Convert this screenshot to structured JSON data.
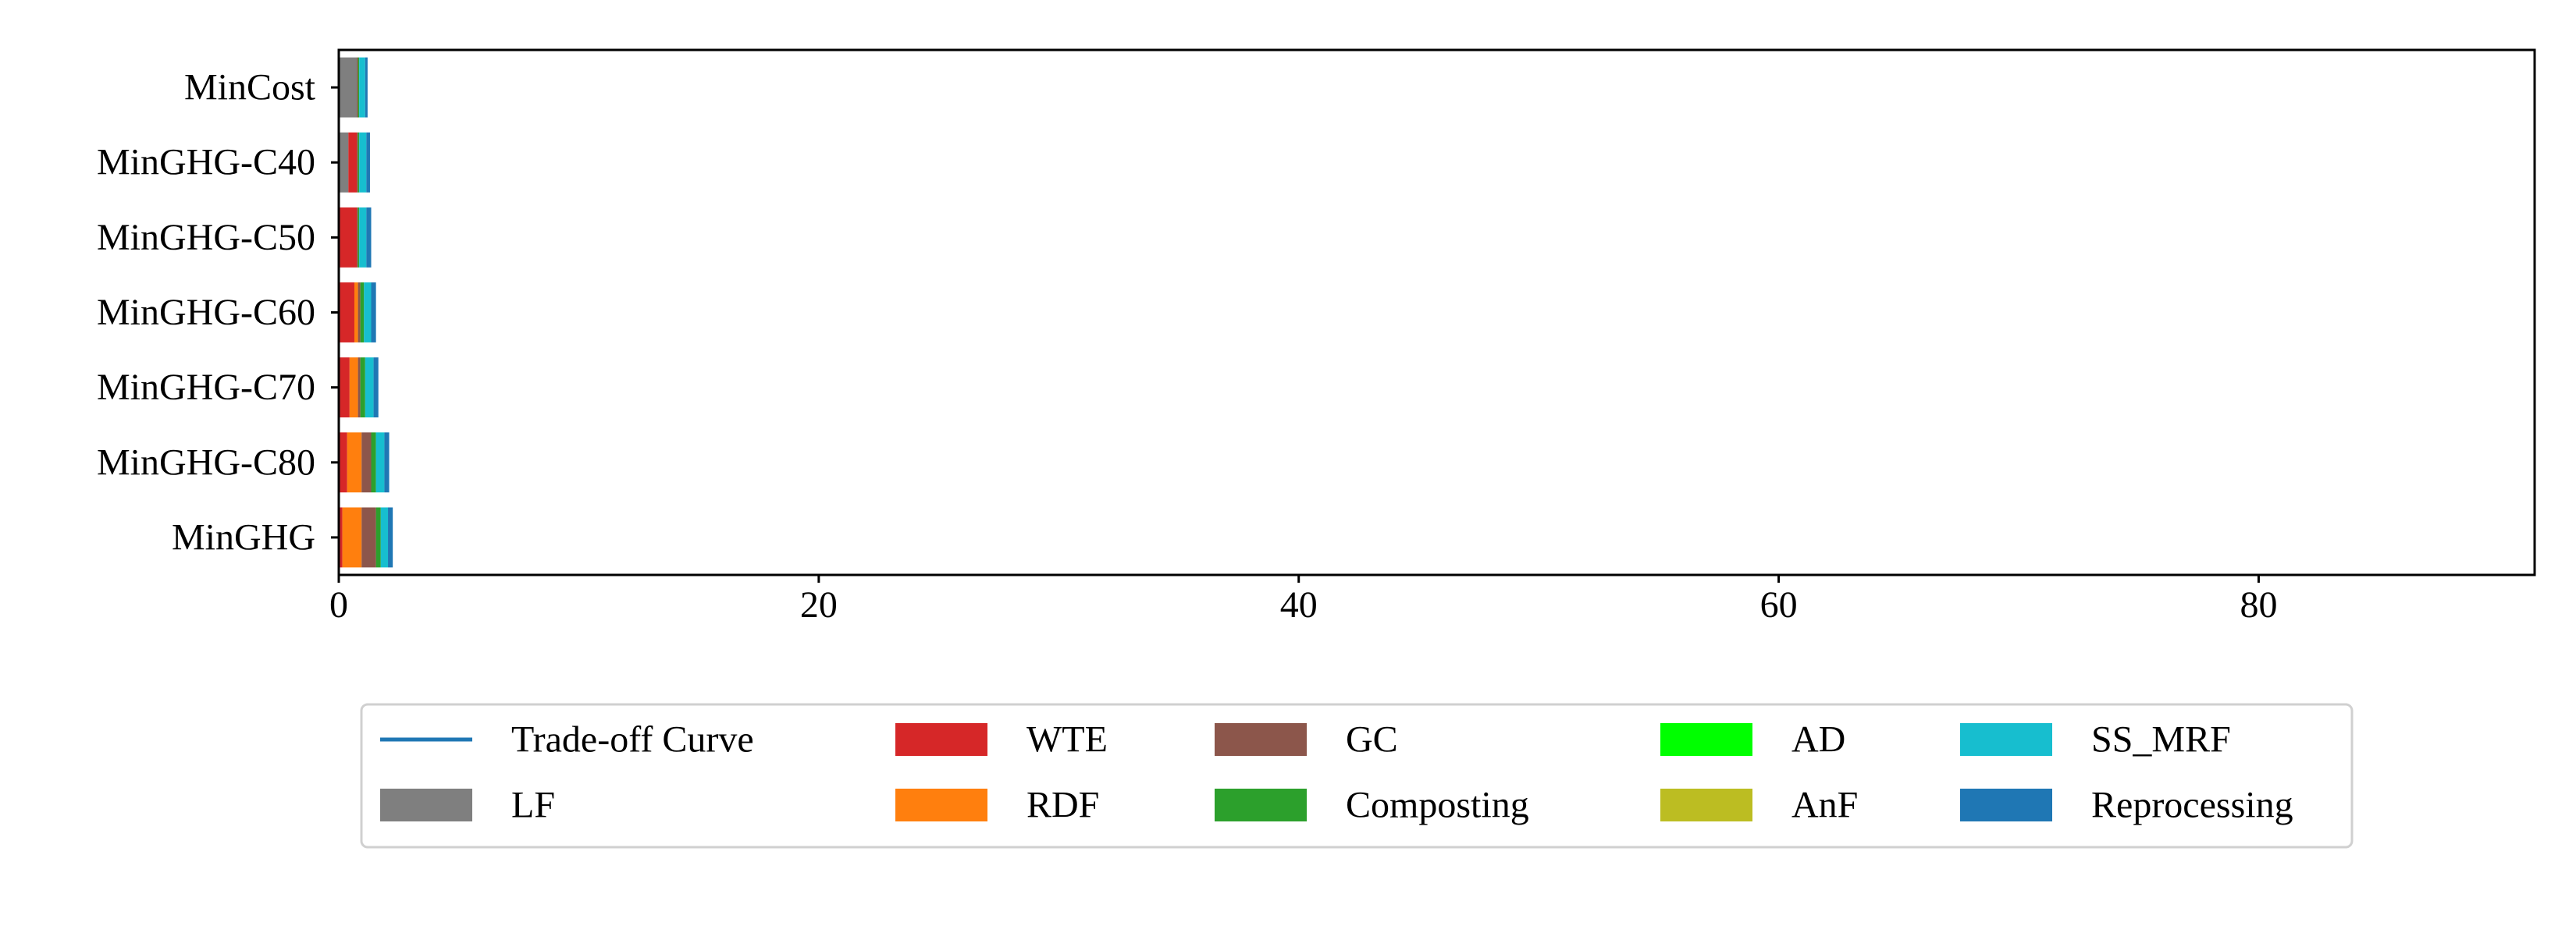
{
  "chart_data": {
    "type": "bar",
    "orientation": "horizontal",
    "stacked": true,
    "categories": [
      "MinCost",
      "MinGHG-C40",
      "MinGHG-C50",
      "MinGHG-C60",
      "MinGHG-C70",
      "MinGHG-C80",
      "MinGHG"
    ],
    "xlim": [
      0,
      91.5
    ],
    "xticks": [
      0,
      20,
      40,
      60,
      80
    ],
    "xtick_labels": [
      "0",
      "20",
      "40",
      "60",
      "80"
    ],
    "title": "",
    "xlabel": "",
    "ylabel": "",
    "grid": false,
    "legend_position": "below",
    "series": [
      {
        "name": "LF",
        "color": "#7f7f7f",
        "values": [
          0.75,
          0.4,
          0.05,
          0.05,
          0.05,
          0.05,
          0.05
        ]
      },
      {
        "name": "WTE",
        "color": "#d62728",
        "values": [
          0.0,
          0.35,
          0.7,
          0.6,
          0.4,
          0.3,
          0.1
        ]
      },
      {
        "name": "RDF",
        "color": "#ff7f0e",
        "values": [
          0.0,
          0.0,
          0.0,
          0.15,
          0.35,
          0.6,
          0.8
        ]
      },
      {
        "name": "GC",
        "color": "#8c564b",
        "values": [
          0.05,
          0.05,
          0.05,
          0.1,
          0.1,
          0.4,
          0.6
        ]
      },
      {
        "name": "Composting",
        "color": "#2ca02c",
        "values": [
          0.05,
          0.05,
          0.05,
          0.15,
          0.2,
          0.2,
          0.2
        ]
      },
      {
        "name": "AD",
        "color": "#00ff00",
        "values": [
          0.0,
          0.0,
          0.0,
          0.0,
          0.0,
          0.0,
          0.0
        ]
      },
      {
        "name": "AnF",
        "color": "#bcbd22",
        "values": [
          0.0,
          0.0,
          0.0,
          0.0,
          0.0,
          0.0,
          0.0
        ]
      },
      {
        "name": "SS_MRF",
        "color": "#17becf",
        "values": [
          0.25,
          0.3,
          0.3,
          0.3,
          0.35,
          0.35,
          0.3
        ]
      },
      {
        "name": "Reprocessing",
        "color": "#1f77b4",
        "values": [
          0.1,
          0.15,
          0.2,
          0.2,
          0.2,
          0.2,
          0.2
        ]
      }
    ],
    "trade_off_curve": {
      "name": "Trade-off Curve",
      "color": "#1f77b4"
    },
    "legend_entries": [
      {
        "label": "Trade-off Curve",
        "kind": "line",
        "color": "#1f77b4"
      },
      {
        "label": "LF",
        "kind": "patch",
        "color": "#7f7f7f"
      },
      {
        "label": "WTE",
        "kind": "patch",
        "color": "#d62728"
      },
      {
        "label": "RDF",
        "kind": "patch",
        "color": "#ff7f0e"
      },
      {
        "label": "GC",
        "kind": "patch",
        "color": "#8c564b"
      },
      {
        "label": "Composting",
        "kind": "patch",
        "color": "#2ca02c"
      },
      {
        "label": "AD",
        "kind": "patch",
        "color": "#00ff00"
      },
      {
        "label": "AnF",
        "kind": "patch",
        "color": "#bcbd22"
      },
      {
        "label": "SS_MRF",
        "kind": "patch",
        "color": "#17becf"
      },
      {
        "label": "Reprocessing",
        "kind": "patch",
        "color": "#1f77b4"
      }
    ]
  }
}
